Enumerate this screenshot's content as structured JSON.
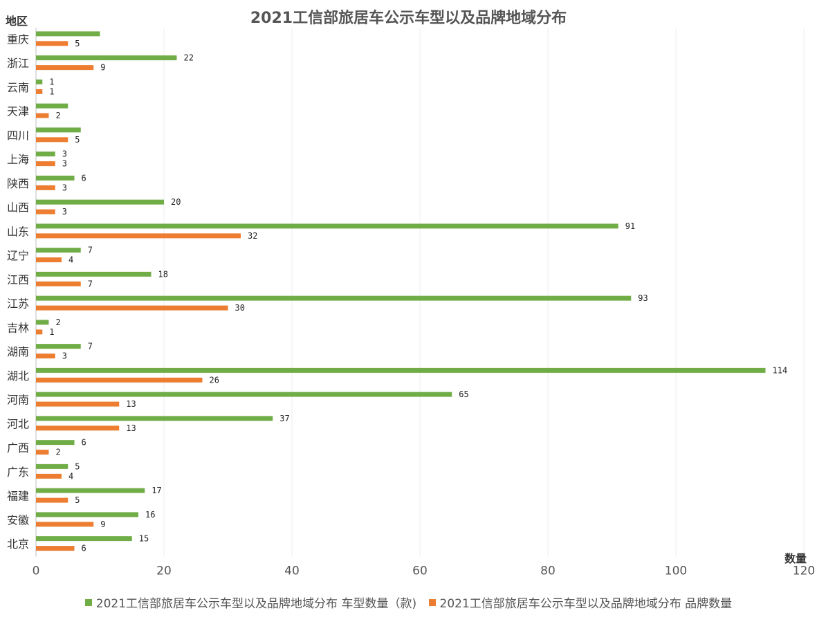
{
  "chart_data": {
    "type": "bar",
    "orientation": "horizontal",
    "title": "2021工信部旅居车公示车型以及品牌地域分布",
    "ylabel": "地区",
    "xlabel": "数量",
    "xlim": [
      0,
      120
    ],
    "xticks": [
      0,
      20,
      40,
      60,
      80,
      100,
      120
    ],
    "grid": true,
    "legend_position": "bottom",
    "categories": [
      "重庆",
      "浙江",
      "云南",
      "天津",
      "四川",
      "上海",
      "陕西",
      "山西",
      "山东",
      "辽宁",
      "江西",
      "江苏",
      "吉林",
      "湖南",
      "湖北",
      "河南",
      "河北",
      "广西",
      "广东",
      "福建",
      "安徽",
      "北京"
    ],
    "series": [
      {
        "name": "2021工信部旅居车公示车型以及品牌地域分布 车型数量（款)",
        "color": "#70ad47",
        "values": [
          10,
          22,
          1,
          5,
          7,
          3,
          6,
          20,
          91,
          7,
          18,
          93,
          2,
          7,
          114,
          65,
          37,
          6,
          5,
          17,
          16,
          15
        ],
        "labels": [
          "",
          "22",
          "1",
          "",
          "",
          "3",
          "6",
          "20",
          "91",
          "7",
          "18",
          "93",
          "2",
          "7",
          "114",
          "65",
          "37",
          "6",
          "5",
          "17",
          "16",
          "15"
        ]
      },
      {
        "name": "2021工信部旅居车公示车型以及品牌地域分布 品牌数量",
        "color": "#ed7d31",
        "values": [
          5,
          9,
          1,
          2,
          5,
          3,
          3,
          3,
          32,
          4,
          7,
          30,
          1,
          3,
          26,
          13,
          13,
          2,
          4,
          5,
          9,
          6
        ],
        "labels": [
          "5",
          "9",
          "1",
          "2",
          "5",
          "3",
          "3",
          "3",
          "32",
          "4",
          "7",
          "30",
          "1",
          "3",
          "26",
          "13",
          "13",
          "2",
          "4",
          "5",
          "9",
          "6"
        ]
      }
    ]
  }
}
